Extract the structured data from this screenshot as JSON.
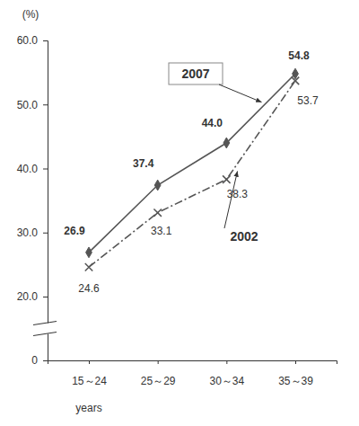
{
  "chart_data": {
    "type": "line",
    "y_label": "(%)",
    "x_label": "years",
    "categories": [
      "15～24",
      "25～29",
      "30～34",
      "35～39"
    ],
    "series": [
      {
        "name": "2007",
        "color": "#555555",
        "line_style": "solid",
        "marker": "diamond",
        "values": [
          26.9,
          37.4,
          44.0,
          54.8
        ],
        "value_labels": [
          "26.9",
          "37.4",
          "44.0",
          "54.8"
        ]
      },
      {
        "name": "2002",
        "color": "#555555",
        "line_style": "dashdot",
        "marker": "x",
        "values": [
          24.6,
          33.1,
          38.3,
          53.7
        ],
        "value_labels": [
          "24.6",
          "33.1",
          "38.3",
          "53.7"
        ]
      }
    ],
    "ylim": [
      0,
      60
    ],
    "yticks": [
      0,
      {
        "value": 20,
        "label": "20.0"
      },
      {
        "value": 30,
        "label": "30.0"
      },
      {
        "value": 40,
        "label": "40.0"
      },
      {
        "value": 50,
        "label": "50.0"
      },
      {
        "value": 60,
        "label": "60.0"
      }
    ],
    "grid": false,
    "data_labels": true
  }
}
